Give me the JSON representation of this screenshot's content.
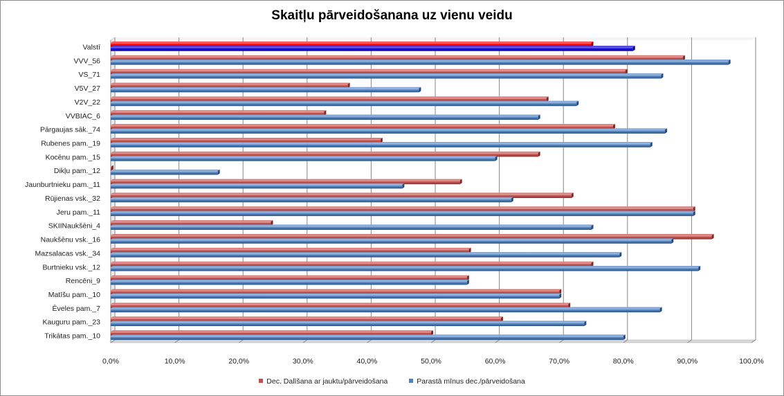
{
  "chart_data": {
    "type": "bar",
    "orientation": "horizontal",
    "title": "Skaitļu pārveidošanana uz vienu veidu",
    "xlim": [
      0,
      100
    ],
    "x_tick_labels": [
      "0,0%",
      "10,0%",
      "20,0%",
      "30,0%",
      "40,0%",
      "50,0%",
      "60,0%",
      "70,0%",
      "80,0%",
      "90,0%",
      "100,0%"
    ],
    "gridlines": "vertical",
    "legend_position": "bottom",
    "categories": [
      "Valstī",
      "VVV_56",
      "VS_71",
      "V5V_27",
      "V2V_22",
      "VVBIAC_6",
      "Pārgaujas sāk._74",
      "Rubenes pam._19",
      "Kocēnu pam._15",
      "Dikļu pam._12",
      "Jaunburtnieku pam._11",
      "Rūjienas vsk._32",
      "Jeru pam._11",
      "SKIINaukšēni_4",
      "Naukšēnu vsk._16",
      "Mazsalacas vsk._34",
      "Burtnieku vsk._12",
      "Rencēni_9",
      "Matīšu pam._10",
      "Ēveles pam._7",
      "Kauguru pam._23",
      "Trikātas pam._10"
    ],
    "highlight": {
      "category": "Valstī",
      "colors": [
        "#ff0000",
        "#1c10d8"
      ]
    },
    "series": [
      {
        "name": "Dec. Dalīšana ar jauktu/pārveidošana",
        "color": "#c0504d",
        "values": [
          75.0,
          89.3,
          80.3,
          37.0,
          68.0,
          33.3,
          78.4,
          42.1,
          66.7,
          0.1,
          54.5,
          71.9,
          90.9,
          25.0,
          93.8,
          55.9,
          75.0,
          55.6,
          70.0,
          71.4,
          60.9,
          50.0
        ]
      },
      {
        "name": "Parastā mīnus dec./pārveidošana",
        "color": "#4f81bd",
        "values": [
          81.5,
          96.4,
          85.9,
          48.1,
          72.7,
          66.7,
          86.5,
          84.2,
          60.0,
          16.7,
          45.5,
          62.5,
          90.9,
          75.0,
          87.5,
          79.4,
          91.7,
          55.6,
          70.0,
          85.7,
          73.9,
          80.0
        ]
      }
    ]
  }
}
